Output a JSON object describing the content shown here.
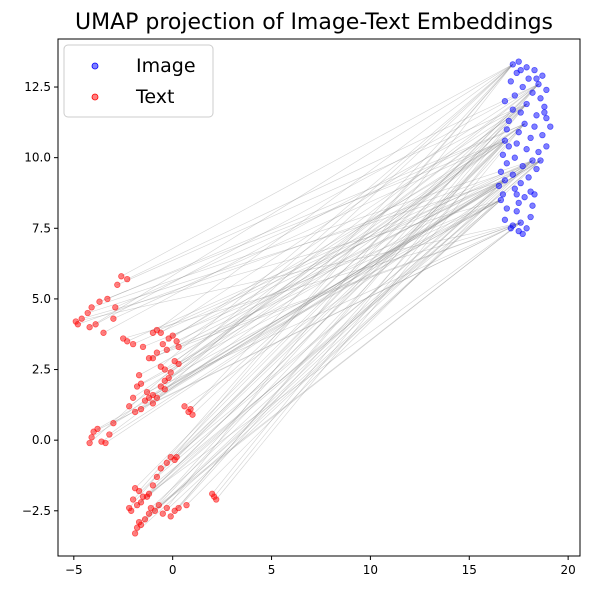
{
  "chart_data": {
    "type": "scatter",
    "title": "UMAP projection of Image-Text Embeddings",
    "xlabel": "",
    "ylabel": "",
    "xlim": [
      -5.8,
      20.6
    ],
    "ylim": [
      -4.1,
      14.2
    ],
    "xticks": [
      -5,
      0,
      5,
      10,
      15,
      20
    ],
    "yticks": [
      -2.5,
      0.0,
      2.5,
      5.0,
      7.5,
      10.0,
      12.5
    ],
    "xtick_labels": [
      "−5",
      "0",
      "5",
      "10",
      "15",
      "20"
    ],
    "ytick_labels": [
      "−2.5",
      "0.0",
      "2.5",
      "5.0",
      "7.5",
      "10.0",
      "12.5"
    ],
    "grid": false,
    "legend_position": "top-left",
    "connections": "each image point is joined by a thin grey line to its paired text point",
    "series": [
      {
        "name": "Image",
        "color": "#0000ff",
        "points": [
          [
            17.2,
            13.3
          ],
          [
            17.5,
            13.4
          ],
          [
            17.9,
            13.2
          ],
          [
            18.3,
            13.1
          ],
          [
            18.7,
            12.9
          ],
          [
            17.4,
            13.0
          ],
          [
            18.0,
            12.8
          ],
          [
            18.5,
            12.6
          ],
          [
            17.1,
            12.7
          ],
          [
            17.7,
            12.5
          ],
          [
            18.9,
            12.4
          ],
          [
            18.2,
            12.3
          ],
          [
            17.3,
            12.2
          ],
          [
            18.6,
            12.1
          ],
          [
            17.9,
            11.9
          ],
          [
            18.8,
            11.8
          ],
          [
            17.2,
            11.7
          ],
          [
            17.6,
            11.6
          ],
          [
            18.4,
            11.5
          ],
          [
            18.9,
            11.4
          ],
          [
            17.0,
            11.3
          ],
          [
            17.8,
            11.2
          ],
          [
            18.3,
            11.1
          ],
          [
            19.1,
            11.1
          ],
          [
            16.9,
            11.0
          ],
          [
            17.5,
            10.9
          ],
          [
            18.7,
            10.8
          ],
          [
            18.1,
            10.7
          ],
          [
            16.8,
            10.6
          ],
          [
            17.4,
            10.5
          ],
          [
            18.9,
            10.4
          ],
          [
            17.9,
            10.3
          ],
          [
            18.5,
            10.2
          ],
          [
            16.7,
            10.1
          ],
          [
            17.3,
            10.0
          ],
          [
            18.2,
            9.9
          ],
          [
            16.9,
            9.8
          ],
          [
            17.7,
            9.7
          ],
          [
            18.4,
            9.6
          ],
          [
            16.6,
            9.5
          ],
          [
            17.2,
            9.4
          ],
          [
            18.0,
            9.3
          ],
          [
            16.8,
            9.2
          ],
          [
            17.6,
            9.1
          ],
          [
            16.5,
            9.0
          ],
          [
            17.3,
            8.9
          ],
          [
            18.1,
            8.8
          ],
          [
            16.7,
            8.7
          ],
          [
            17.8,
            8.6
          ],
          [
            16.6,
            8.5
          ],
          [
            17.5,
            8.4
          ],
          [
            18.2,
            8.3
          ],
          [
            16.9,
            8.2
          ],
          [
            17.4,
            8.1
          ],
          [
            18.1,
            7.9
          ],
          [
            16.8,
            7.8
          ],
          [
            17.6,
            7.7
          ],
          [
            17.2,
            7.6
          ],
          [
            17.9,
            7.5
          ],
          [
            17.5,
            7.4
          ],
          [
            17.7,
            7.3
          ],
          [
            17.1,
            7.5
          ],
          [
            18.3,
            8.7
          ],
          [
            18.6,
            9.9
          ],
          [
            18.8,
            11.6
          ],
          [
            18.4,
            12.8
          ],
          [
            17.6,
            13.1
          ],
          [
            16.8,
            12.0
          ],
          [
            17.0,
            10.4
          ],
          [
            17.4,
            8.7
          ]
        ]
      },
      {
        "name": "Text",
        "color": "#ff0000",
        "points": [
          [
            -2.6,
            5.8
          ],
          [
            -2.3,
            5.7
          ],
          [
            -2.8,
            5.5
          ],
          [
            -3.3,
            5.0
          ],
          [
            -3.7,
            4.9
          ],
          [
            -4.1,
            4.7
          ],
          [
            -4.3,
            4.5
          ],
          [
            -4.6,
            4.3
          ],
          [
            -4.9,
            4.2
          ],
          [
            -4.8,
            4.1
          ],
          [
            -4.2,
            4.0
          ],
          [
            -3.9,
            4.1
          ],
          [
            -3.5,
            3.8
          ],
          [
            -2.9,
            4.7
          ],
          [
            -3.0,
            4.3
          ],
          [
            -2.3,
            3.5
          ],
          [
            -2.0,
            3.4
          ],
          [
            -1.5,
            3.3
          ],
          [
            -1.2,
            2.9
          ],
          [
            -1.0,
            3.8
          ],
          [
            -0.8,
            3.9
          ],
          [
            -0.6,
            3.8
          ],
          [
            -0.5,
            3.4
          ],
          [
            -0.3,
            3.2
          ],
          [
            -0.2,
            3.6
          ],
          [
            0.0,
            3.7
          ],
          [
            0.2,
            3.5
          ],
          [
            0.3,
            3.3
          ],
          [
            -0.8,
            3.1
          ],
          [
            -1.0,
            2.9
          ],
          [
            -0.6,
            2.6
          ],
          [
            -0.4,
            2.5
          ],
          [
            -0.1,
            2.4
          ],
          [
            0.1,
            2.8
          ],
          [
            0.3,
            2.7
          ],
          [
            -1.7,
            2.3
          ],
          [
            -1.6,
            2.0
          ],
          [
            -1.8,
            1.9
          ],
          [
            -1.3,
            1.7
          ],
          [
            -1.0,
            1.6
          ],
          [
            -0.8,
            1.5
          ],
          [
            -0.6,
            1.9
          ],
          [
            -0.4,
            2.1
          ],
          [
            -2.0,
            1.5
          ],
          [
            -2.2,
            1.2
          ],
          [
            -1.9,
            1.0
          ],
          [
            -1.6,
            1.1
          ],
          [
            -1.2,
            1.5
          ],
          [
            -1.0,
            1.3
          ],
          [
            0.6,
            1.2
          ],
          [
            0.8,
            1.0
          ],
          [
            1.0,
            0.9
          ],
          [
            0.9,
            1.1
          ],
          [
            -3.0,
            0.6
          ],
          [
            -3.2,
            0.2
          ],
          [
            -3.4,
            -0.1
          ],
          [
            -3.6,
            -0.05
          ],
          [
            -3.8,
            0.4
          ],
          [
            -4.0,
            0.3
          ],
          [
            -4.1,
            0.1
          ],
          [
            -4.2,
            -0.1
          ],
          [
            -0.1,
            -0.6
          ],
          [
            0.1,
            -0.7
          ],
          [
            0.2,
            -0.6
          ],
          [
            -0.3,
            -0.8
          ],
          [
            -0.6,
            -1.0
          ],
          [
            -0.8,
            -1.3
          ],
          [
            -1.0,
            -1.6
          ],
          [
            -1.2,
            -1.9
          ],
          [
            -1.5,
            -2.0
          ],
          [
            -1.7,
            -1.8
          ],
          [
            -1.9,
            -1.7
          ],
          [
            -2.0,
            -2.1
          ],
          [
            -1.8,
            -2.3
          ],
          [
            -1.6,
            -2.2
          ],
          [
            -1.3,
            -2.0
          ],
          [
            -1.1,
            -2.4
          ],
          [
            -0.9,
            -2.5
          ],
          [
            -0.7,
            -2.3
          ],
          [
            -0.5,
            -2.6
          ],
          [
            -0.3,
            -2.4
          ],
          [
            -0.1,
            -2.7
          ],
          [
            0.1,
            -2.5
          ],
          [
            0.3,
            -2.4
          ],
          [
            -1.4,
            -2.8
          ],
          [
            -1.6,
            -3.0
          ],
          [
            -1.8,
            -3.1
          ],
          [
            -1.9,
            -3.3
          ],
          [
            -1.7,
            -2.9
          ],
          [
            -2.1,
            -2.5
          ],
          [
            -2.2,
            -2.4
          ],
          [
            -1.2,
            -2.6
          ],
          [
            2.0,
            -1.9
          ],
          [
            2.2,
            -2.1
          ],
          [
            2.1,
            -2.0
          ],
          [
            0.7,
            -2.3
          ],
          [
            -0.4,
            1.8
          ],
          [
            -0.2,
            2.2
          ],
          [
            -2.5,
            3.6
          ],
          [
            -1.4,
            1.4
          ]
        ]
      }
    ]
  }
}
